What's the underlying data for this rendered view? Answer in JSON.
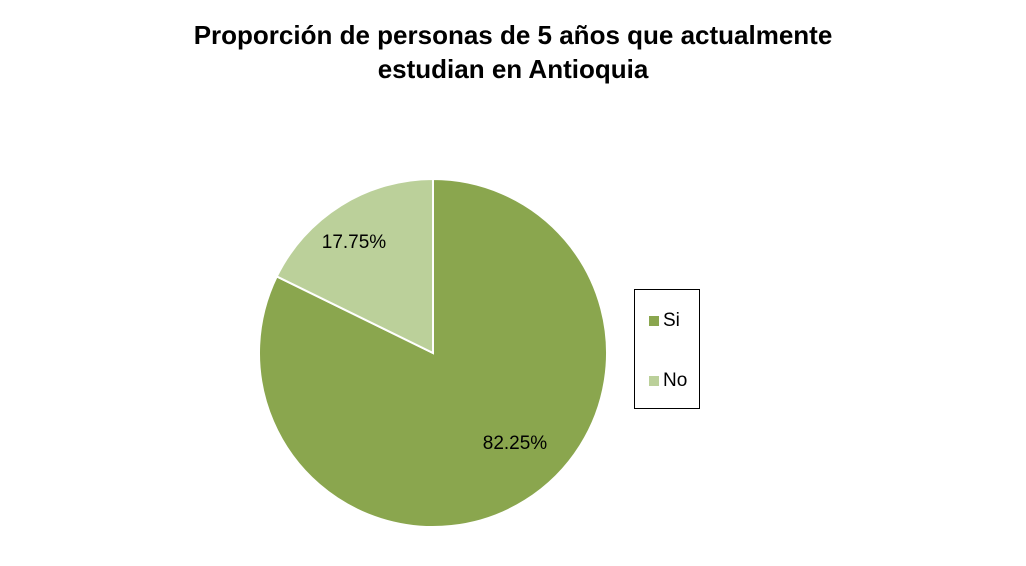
{
  "chart_data": {
    "type": "pie",
    "title_lines": [
      "Proporción de personas de 5 años que actualmente",
      "estudian en Antioquia"
    ],
    "slices": [
      {
        "label": "Si",
        "value": 82.25,
        "value_label": "82.25%",
        "color": "#8aa64e"
      },
      {
        "label": "No",
        "value": 17.75,
        "value_label": "17.75%",
        "color": "#bbd09a"
      }
    ],
    "start_angle_deg": 0,
    "direction": "clockwise",
    "legend_position": "right",
    "slice_border_color": "#ffffff"
  }
}
